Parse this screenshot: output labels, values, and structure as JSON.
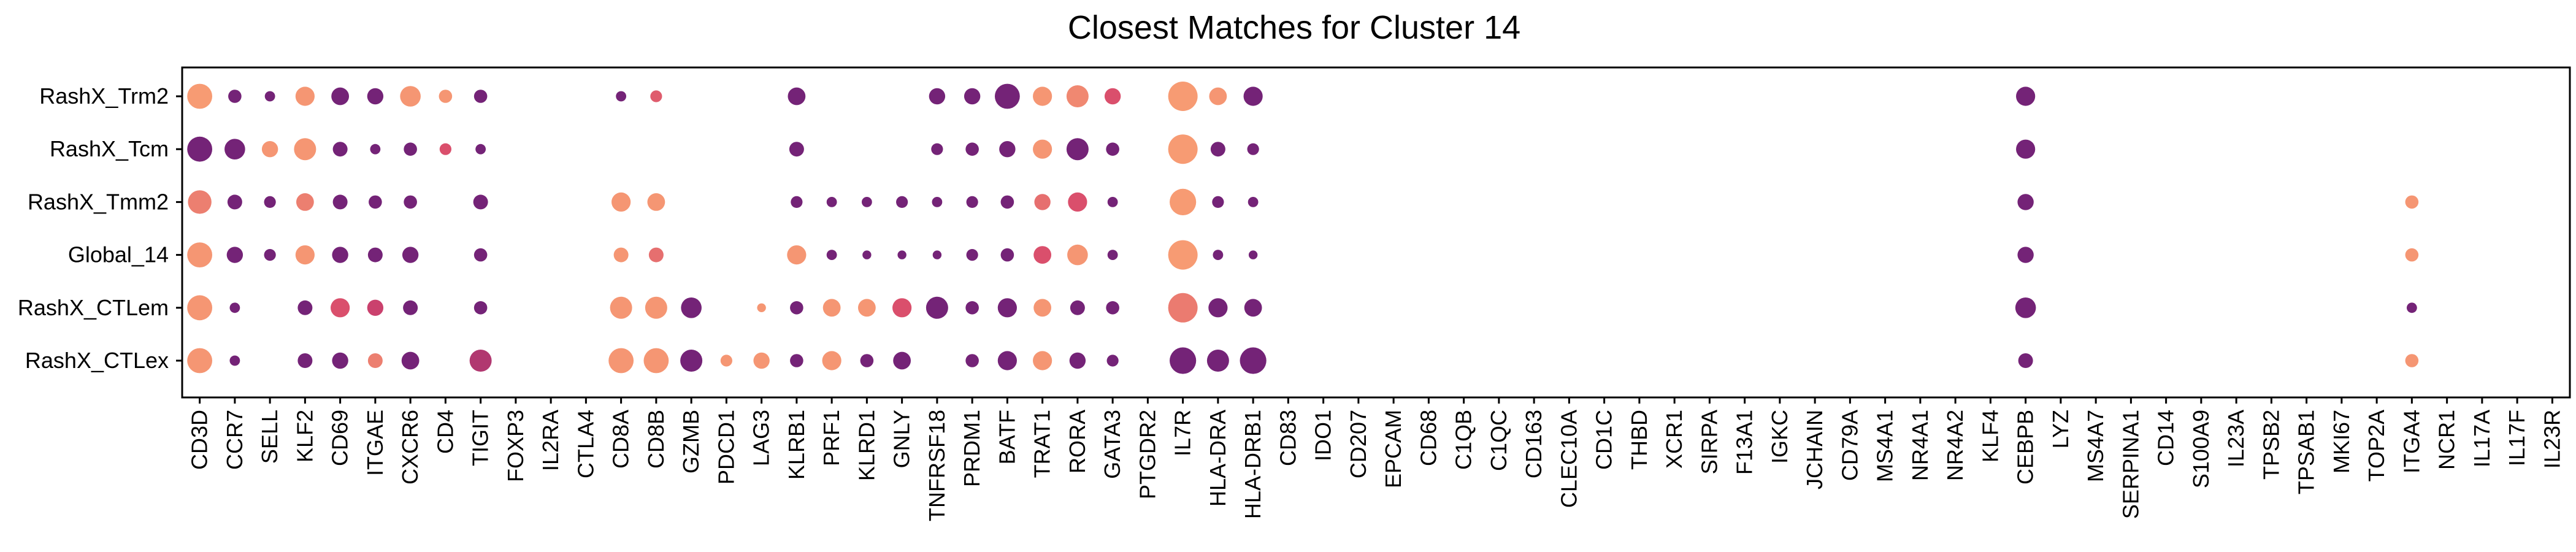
{
  "chart_data": {
    "type": "dotplot",
    "title": "Closest Matches for Cluster 14",
    "xlabel": "",
    "ylabel": "",
    "grid": false,
    "legend": "none",
    "rows": [
      "RashX_Trm2",
      "RashX_Tcm",
      "RashX_Tmm2",
      "Global_14",
      "RashX_CTLem",
      "RashX_CTLex"
    ],
    "genes": [
      "CD3D",
      "CCR7",
      "SELL",
      "KLF2",
      "CD69",
      "ITGAE",
      "CXCR6",
      "CD4",
      "TIGIT",
      "FOXP3",
      "IL2RA",
      "CTLA4",
      "CD8A",
      "CD8B",
      "GZMB",
      "PDCD1",
      "LAG3",
      "KLRB1",
      "PRF1",
      "KLRD1",
      "GNLY",
      "TNFRSF18",
      "PRDM1",
      "BATF",
      "TRAT1",
      "RORA",
      "GATA3",
      "PTGDR2",
      "IL7R",
      "HLA-DRA",
      "HLA-DRB1",
      "CD83",
      "IDO1",
      "CD207",
      "EPCAM",
      "CD68",
      "C1QB",
      "C1QC",
      "CD163",
      "CLEC10A",
      "CD1C",
      "THBD",
      "XCR1",
      "SIRPA",
      "F13A1",
      "IGKC",
      "JCHAIN",
      "CD79A",
      "MS4A1",
      "NR4A1",
      "NR4A2",
      "KLF4",
      "CEBPB",
      "LYZ",
      "MS4A7",
      "SERPINA1",
      "CD14",
      "S100A9",
      "IL23A",
      "TPSB2",
      "TPSAB1",
      "MKI67",
      "TOP2A",
      "ITGA4",
      "NCR1",
      "IL17A",
      "IL17F",
      "IL23R"
    ],
    "color_scale": {
      "low": "#5b1a7a",
      "mid": "#d6456b",
      "high": "#fba574"
    },
    "points": [
      {
        "row": "RashX_Trm2",
        "gene": "CD3D",
        "size": 0.85,
        "color": 0.95
      },
      {
        "row": "RashX_Trm2",
        "gene": "CCR7",
        "size": 0.45,
        "color": 0.1
      },
      {
        "row": "RashX_Trm2",
        "gene": "SELL",
        "size": 0.35,
        "color": 0.1
      },
      {
        "row": "RashX_Trm2",
        "gene": "KLF2",
        "size": 0.65,
        "color": 0.92
      },
      {
        "row": "RashX_Trm2",
        "gene": "CD69",
        "size": 0.6,
        "color": 0.1
      },
      {
        "row": "RashX_Trm2",
        "gene": "ITGAE",
        "size": 0.55,
        "color": 0.1
      },
      {
        "row": "RashX_Trm2",
        "gene": "CXCR6",
        "size": 0.7,
        "color": 0.92
      },
      {
        "row": "RashX_Trm2",
        "gene": "CD4",
        "size": 0.45,
        "color": 0.92
      },
      {
        "row": "RashX_Trm2",
        "gene": "TIGIT",
        "size": 0.45,
        "color": 0.1
      },
      {
        "row": "RashX_Trm2",
        "gene": "CD8A",
        "size": 0.35,
        "color": 0.1
      },
      {
        "row": "RashX_Trm2",
        "gene": "CD8B",
        "size": 0.4,
        "color": 0.62
      },
      {
        "row": "RashX_Trm2",
        "gene": "KLRB1",
        "size": 0.6,
        "color": 0.1
      },
      {
        "row": "RashX_Trm2",
        "gene": "TNFRSF18",
        "size": 0.55,
        "color": 0.1
      },
      {
        "row": "RashX_Trm2",
        "gene": "PRDM1",
        "size": 0.55,
        "color": 0.1
      },
      {
        "row": "RashX_Trm2",
        "gene": "BATF",
        "size": 0.85,
        "color": 0.1
      },
      {
        "row": "RashX_Trm2",
        "gene": "TRAT1",
        "size": 0.65,
        "color": 0.92
      },
      {
        "row": "RashX_Trm2",
        "gene": "RORA",
        "size": 0.75,
        "color": 0.85
      },
      {
        "row": "RashX_Trm2",
        "gene": "GATA3",
        "size": 0.55,
        "color": 0.55
      },
      {
        "row": "RashX_Trm2",
        "gene": "IL7R",
        "size": 1.0,
        "color": 0.95
      },
      {
        "row": "RashX_Trm2",
        "gene": "HLA-DRA",
        "size": 0.6,
        "color": 0.92
      },
      {
        "row": "RashX_Trm2",
        "gene": "HLA-DRB1",
        "size": 0.65,
        "color": 0.1
      },
      {
        "row": "RashX_Trm2",
        "gene": "CEBPB",
        "size": 0.65,
        "color": 0.1
      },
      {
        "row": "RashX_Tcm",
        "gene": "CD3D",
        "size": 0.85,
        "color": 0.1
      },
      {
        "row": "RashX_Tcm",
        "gene": "CCR7",
        "size": 0.7,
        "color": 0.1
      },
      {
        "row": "RashX_Tcm",
        "gene": "SELL",
        "size": 0.55,
        "color": 0.92
      },
      {
        "row": "RashX_Tcm",
        "gene": "KLF2",
        "size": 0.75,
        "color": 0.92
      },
      {
        "row": "RashX_Tcm",
        "gene": "CD69",
        "size": 0.5,
        "color": 0.1
      },
      {
        "row": "RashX_Tcm",
        "gene": "ITGAE",
        "size": 0.35,
        "color": 0.1
      },
      {
        "row": "RashX_Tcm",
        "gene": "CXCR6",
        "size": 0.45,
        "color": 0.1
      },
      {
        "row": "RashX_Tcm",
        "gene": "CD4",
        "size": 0.4,
        "color": 0.55
      },
      {
        "row": "RashX_Tcm",
        "gene": "TIGIT",
        "size": 0.35,
        "color": 0.1
      },
      {
        "row": "RashX_Tcm",
        "gene": "KLRB1",
        "size": 0.5,
        "color": 0.1
      },
      {
        "row": "RashX_Tcm",
        "gene": "TNFRSF18",
        "size": 0.4,
        "color": 0.1
      },
      {
        "row": "RashX_Tcm",
        "gene": "PRDM1",
        "size": 0.45,
        "color": 0.1
      },
      {
        "row": "RashX_Tcm",
        "gene": "BATF",
        "size": 0.55,
        "color": 0.1
      },
      {
        "row": "RashX_Tcm",
        "gene": "TRAT1",
        "size": 0.65,
        "color": 0.92
      },
      {
        "row": "RashX_Tcm",
        "gene": "RORA",
        "size": 0.75,
        "color": 0.1
      },
      {
        "row": "RashX_Tcm",
        "gene": "GATA3",
        "size": 0.45,
        "color": 0.1
      },
      {
        "row": "RashX_Tcm",
        "gene": "IL7R",
        "size": 1.0,
        "color": 0.95
      },
      {
        "row": "RashX_Tcm",
        "gene": "HLA-DRA",
        "size": 0.5,
        "color": 0.1
      },
      {
        "row": "RashX_Tcm",
        "gene": "HLA-DRB1",
        "size": 0.4,
        "color": 0.1
      },
      {
        "row": "RashX_Tcm",
        "gene": "CEBPB",
        "size": 0.65,
        "color": 0.1
      },
      {
        "row": "RashX_Tmm2",
        "gene": "CD3D",
        "size": 0.8,
        "color": 0.8
      },
      {
        "row": "RashX_Tmm2",
        "gene": "CCR7",
        "size": 0.5,
        "color": 0.1
      },
      {
        "row": "RashX_Tmm2",
        "gene": "SELL",
        "size": 0.4,
        "color": 0.1
      },
      {
        "row": "RashX_Tmm2",
        "gene": "KLF2",
        "size": 0.6,
        "color": 0.8
      },
      {
        "row": "RashX_Tmm2",
        "gene": "CD69",
        "size": 0.5,
        "color": 0.1
      },
      {
        "row": "RashX_Tmm2",
        "gene": "ITGAE",
        "size": 0.45,
        "color": 0.1
      },
      {
        "row": "RashX_Tmm2",
        "gene": "CXCR6",
        "size": 0.45,
        "color": 0.1
      },
      {
        "row": "RashX_Tmm2",
        "gene": "TIGIT",
        "size": 0.5,
        "color": 0.1
      },
      {
        "row": "RashX_Tmm2",
        "gene": "CD8A",
        "size": 0.65,
        "color": 0.92
      },
      {
        "row": "RashX_Tmm2",
        "gene": "CD8B",
        "size": 0.6,
        "color": 0.92
      },
      {
        "row": "RashX_Tmm2",
        "gene": "KLRB1",
        "size": 0.4,
        "color": 0.1
      },
      {
        "row": "RashX_Tmm2",
        "gene": "PRF1",
        "size": 0.35,
        "color": 0.1
      },
      {
        "row": "RashX_Tmm2",
        "gene": "KLRD1",
        "size": 0.35,
        "color": 0.1
      },
      {
        "row": "RashX_Tmm2",
        "gene": "GNLY",
        "size": 0.4,
        "color": 0.1
      },
      {
        "row": "RashX_Tmm2",
        "gene": "TNFRSF18",
        "size": 0.35,
        "color": 0.1
      },
      {
        "row": "RashX_Tmm2",
        "gene": "PRDM1",
        "size": 0.4,
        "color": 0.1
      },
      {
        "row": "RashX_Tmm2",
        "gene": "BATF",
        "size": 0.45,
        "color": 0.1
      },
      {
        "row": "RashX_Tmm2",
        "gene": "TRAT1",
        "size": 0.55,
        "color": 0.72
      },
      {
        "row": "RashX_Tmm2",
        "gene": "RORA",
        "size": 0.65,
        "color": 0.55
      },
      {
        "row": "RashX_Tmm2",
        "gene": "GATA3",
        "size": 0.35,
        "color": 0.1
      },
      {
        "row": "RashX_Tmm2",
        "gene": "IL7R",
        "size": 0.9,
        "color": 0.95
      },
      {
        "row": "RashX_Tmm2",
        "gene": "HLA-DRA",
        "size": 0.4,
        "color": 0.1
      },
      {
        "row": "RashX_Tmm2",
        "gene": "HLA-DRB1",
        "size": 0.35,
        "color": 0.1
      },
      {
        "row": "RashX_Tmm2",
        "gene": "CEBPB",
        "size": 0.55,
        "color": 0.1
      },
      {
        "row": "RashX_Tmm2",
        "gene": "ITGA4",
        "size": 0.45,
        "color": 0.92
      },
      {
        "row": "Global_14",
        "gene": "CD3D",
        "size": 0.85,
        "color": 0.92
      },
      {
        "row": "Global_14",
        "gene": "CCR7",
        "size": 0.55,
        "color": 0.1
      },
      {
        "row": "Global_14",
        "gene": "SELL",
        "size": 0.4,
        "color": 0.1
      },
      {
        "row": "Global_14",
        "gene": "KLF2",
        "size": 0.65,
        "color": 0.92
      },
      {
        "row": "Global_14",
        "gene": "CD69",
        "size": 0.55,
        "color": 0.1
      },
      {
        "row": "Global_14",
        "gene": "ITGAE",
        "size": 0.5,
        "color": 0.1
      },
      {
        "row": "Global_14",
        "gene": "CXCR6",
        "size": 0.55,
        "color": 0.1
      },
      {
        "row": "Global_14",
        "gene": "TIGIT",
        "size": 0.45,
        "color": 0.1
      },
      {
        "row": "Global_14",
        "gene": "CD8A",
        "size": 0.5,
        "color": 0.92
      },
      {
        "row": "Global_14",
        "gene": "CD8B",
        "size": 0.5,
        "color": 0.72
      },
      {
        "row": "Global_14",
        "gene": "KLRB1",
        "size": 0.65,
        "color": 0.92
      },
      {
        "row": "Global_14",
        "gene": "PRF1",
        "size": 0.35,
        "color": 0.1
      },
      {
        "row": "Global_14",
        "gene": "KLRD1",
        "size": 0.3,
        "color": 0.1
      },
      {
        "row": "Global_14",
        "gene": "GNLY",
        "size": 0.3,
        "color": 0.1
      },
      {
        "row": "Global_14",
        "gene": "TNFRSF18",
        "size": 0.3,
        "color": 0.1
      },
      {
        "row": "Global_14",
        "gene": "PRDM1",
        "size": 0.4,
        "color": 0.1
      },
      {
        "row": "Global_14",
        "gene": "BATF",
        "size": 0.45,
        "color": 0.1
      },
      {
        "row": "Global_14",
        "gene": "TRAT1",
        "size": 0.6,
        "color": 0.55
      },
      {
        "row": "Global_14",
        "gene": "RORA",
        "size": 0.7,
        "color": 0.92
      },
      {
        "row": "Global_14",
        "gene": "GATA3",
        "size": 0.35,
        "color": 0.1
      },
      {
        "row": "Global_14",
        "gene": "IL7R",
        "size": 1.0,
        "color": 0.95
      },
      {
        "row": "Global_14",
        "gene": "HLA-DRA",
        "size": 0.35,
        "color": 0.1
      },
      {
        "row": "Global_14",
        "gene": "HLA-DRB1",
        "size": 0.3,
        "color": 0.1
      },
      {
        "row": "Global_14",
        "gene": "CEBPB",
        "size": 0.55,
        "color": 0.1
      },
      {
        "row": "Global_14",
        "gene": "ITGA4",
        "size": 0.45,
        "color": 0.92
      },
      {
        "row": "RashX_CTLem",
        "gene": "CD3D",
        "size": 0.85,
        "color": 0.92
      },
      {
        "row": "RashX_CTLem",
        "gene": "CCR7",
        "size": 0.35,
        "color": 0.1
      },
      {
        "row": "RashX_CTLem",
        "gene": "KLF2",
        "size": 0.5,
        "color": 0.1
      },
      {
        "row": "RashX_CTLem",
        "gene": "CD69",
        "size": 0.65,
        "color": 0.55
      },
      {
        "row": "RashX_CTLem",
        "gene": "ITGAE",
        "size": 0.55,
        "color": 0.45
      },
      {
        "row": "RashX_CTLem",
        "gene": "CXCR6",
        "size": 0.5,
        "color": 0.1
      },
      {
        "row": "RashX_CTLem",
        "gene": "TIGIT",
        "size": 0.45,
        "color": 0.1
      },
      {
        "row": "RashX_CTLem",
        "gene": "CD8A",
        "size": 0.75,
        "color": 0.92
      },
      {
        "row": "RashX_CTLem",
        "gene": "CD8B",
        "size": 0.75,
        "color": 0.92
      },
      {
        "row": "RashX_CTLem",
        "gene": "GZMB",
        "size": 0.7,
        "color": 0.1
      },
      {
        "row": "RashX_CTLem",
        "gene": "LAG3",
        "size": 0.3,
        "color": 0.92
      },
      {
        "row": "RashX_CTLem",
        "gene": "KLRB1",
        "size": 0.45,
        "color": 0.1
      },
      {
        "row": "RashX_CTLem",
        "gene": "PRF1",
        "size": 0.6,
        "color": 0.92
      },
      {
        "row": "RashX_CTLem",
        "gene": "KLRD1",
        "size": 0.6,
        "color": 0.92
      },
      {
        "row": "RashX_CTLem",
        "gene": "GNLY",
        "size": 0.65,
        "color": 0.55
      },
      {
        "row": "RashX_CTLem",
        "gene": "TNFRSF18",
        "size": 0.75,
        "color": 0.1
      },
      {
        "row": "RashX_CTLem",
        "gene": "PRDM1",
        "size": 0.45,
        "color": 0.1
      },
      {
        "row": "RashX_CTLem",
        "gene": "BATF",
        "size": 0.65,
        "color": 0.1
      },
      {
        "row": "RashX_CTLem",
        "gene": "TRAT1",
        "size": 0.6,
        "color": 0.92
      },
      {
        "row": "RashX_CTLem",
        "gene": "RORA",
        "size": 0.5,
        "color": 0.1
      },
      {
        "row": "RashX_CTLem",
        "gene": "GATA3",
        "size": 0.45,
        "color": 0.1
      },
      {
        "row": "RashX_CTLem",
        "gene": "IL7R",
        "size": 1.0,
        "color": 0.78
      },
      {
        "row": "RashX_CTLem",
        "gene": "HLA-DRA",
        "size": 0.65,
        "color": 0.1
      },
      {
        "row": "RashX_CTLem",
        "gene": "HLA-DRB1",
        "size": 0.6,
        "color": 0.1
      },
      {
        "row": "RashX_CTLem",
        "gene": "CEBPB",
        "size": 0.7,
        "color": 0.1
      },
      {
        "row": "RashX_CTLem",
        "gene": "ITGA4",
        "size": 0.35,
        "color": 0.1
      },
      {
        "row": "RashX_CTLex",
        "gene": "CD3D",
        "size": 0.85,
        "color": 0.92
      },
      {
        "row": "RashX_CTLex",
        "gene": "CCR7",
        "size": 0.35,
        "color": 0.1
      },
      {
        "row": "RashX_CTLex",
        "gene": "KLF2",
        "size": 0.5,
        "color": 0.1
      },
      {
        "row": "RashX_CTLex",
        "gene": "CD69",
        "size": 0.55,
        "color": 0.1
      },
      {
        "row": "RashX_CTLex",
        "gene": "ITGAE",
        "size": 0.5,
        "color": 0.8
      },
      {
        "row": "RashX_CTLex",
        "gene": "CXCR6",
        "size": 0.6,
        "color": 0.1
      },
      {
        "row": "RashX_CTLex",
        "gene": "TIGIT",
        "size": 0.75,
        "color": 0.35
      },
      {
        "row": "RashX_CTLex",
        "gene": "CD8A",
        "size": 0.85,
        "color": 0.92
      },
      {
        "row": "RashX_CTLex",
        "gene": "CD8B",
        "size": 0.85,
        "color": 0.92
      },
      {
        "row": "RashX_CTLex",
        "gene": "GZMB",
        "size": 0.75,
        "color": 0.1
      },
      {
        "row": "RashX_CTLex",
        "gene": "PDCD1",
        "size": 0.4,
        "color": 0.92
      },
      {
        "row": "RashX_CTLex",
        "gene": "LAG3",
        "size": 0.55,
        "color": 0.92
      },
      {
        "row": "RashX_CTLex",
        "gene": "KLRB1",
        "size": 0.45,
        "color": 0.1
      },
      {
        "row": "RashX_CTLex",
        "gene": "PRF1",
        "size": 0.65,
        "color": 0.92
      },
      {
        "row": "RashX_CTLex",
        "gene": "KLRD1",
        "size": 0.45,
        "color": 0.1
      },
      {
        "row": "RashX_CTLex",
        "gene": "GNLY",
        "size": 0.6,
        "color": 0.1
      },
      {
        "row": "RashX_CTLex",
        "gene": "PRDM1",
        "size": 0.45,
        "color": 0.1
      },
      {
        "row": "RashX_CTLex",
        "gene": "BATF",
        "size": 0.65,
        "color": 0.1
      },
      {
        "row": "RashX_CTLex",
        "gene": "TRAT1",
        "size": 0.65,
        "color": 0.92
      },
      {
        "row": "RashX_CTLex",
        "gene": "RORA",
        "size": 0.55,
        "color": 0.1
      },
      {
        "row": "RashX_CTLex",
        "gene": "GATA3",
        "size": 0.4,
        "color": 0.1
      },
      {
        "row": "RashX_CTLex",
        "gene": "IL7R",
        "size": 0.9,
        "color": 0.1
      },
      {
        "row": "RashX_CTLex",
        "gene": "HLA-DRA",
        "size": 0.75,
        "color": 0.1
      },
      {
        "row": "RashX_CTLex",
        "gene": "HLA-DRB1",
        "size": 0.9,
        "color": 0.1
      },
      {
        "row": "RashX_CTLex",
        "gene": "CEBPB",
        "size": 0.5,
        "color": 0.1
      },
      {
        "row": "RashX_CTLex",
        "gene": "ITGA4",
        "size": 0.45,
        "color": 0.92
      }
    ]
  }
}
